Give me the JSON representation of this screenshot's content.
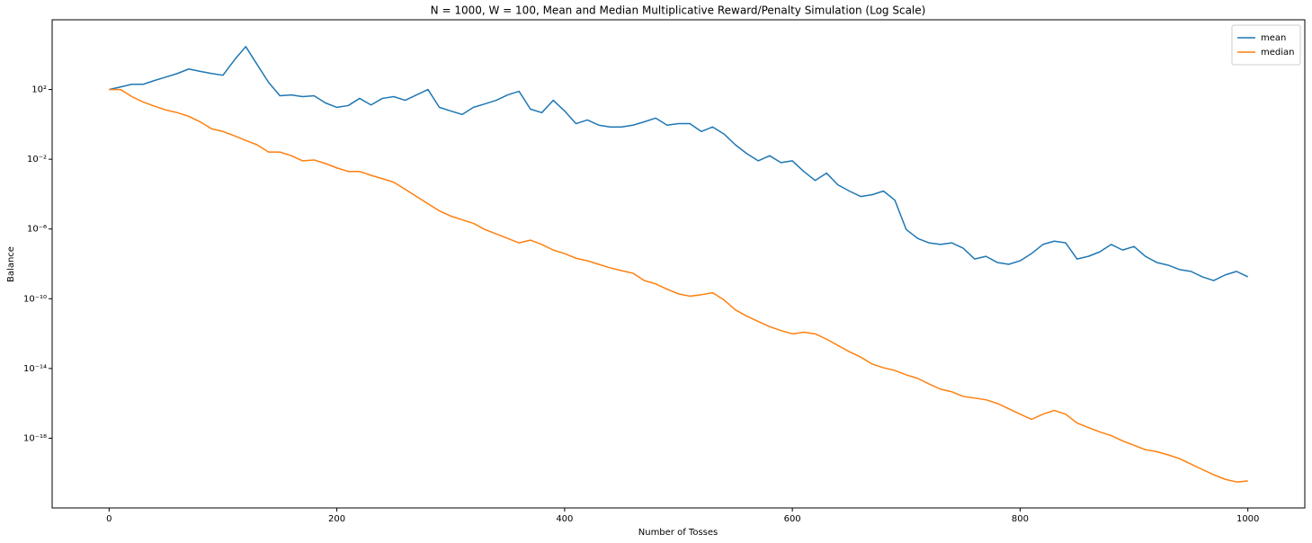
{
  "chart_data": {
    "type": "line",
    "title": "N = 1000, W = 100, Mean and Median Multiplicative Reward/Penalty Simulation (Log Scale)",
    "x_label": "Number of Tosses",
    "y_label": "Balance",
    "yscale": "log",
    "legend": "upper right",
    "grid": false,
    "x": [
      0,
      10,
      20,
      30,
      40,
      50,
      60,
      70,
      80,
      90,
      100,
      110,
      120,
      130,
      140,
      150,
      160,
      170,
      180,
      190,
      200,
      210,
      220,
      230,
      240,
      250,
      260,
      270,
      280,
      290,
      300,
      310,
      320,
      330,
      340,
      350,
      360,
      370,
      380,
      390,
      400,
      410,
      420,
      430,
      440,
      450,
      460,
      470,
      480,
      490,
      500,
      510,
      520,
      530,
      540,
      550,
      560,
      570,
      580,
      590,
      600,
      610,
      620,
      630,
      640,
      650,
      660,
      670,
      680,
      690,
      700,
      710,
      720,
      730,
      740,
      750,
      760,
      770,
      780,
      790,
      800,
      810,
      820,
      830,
      840,
      850,
      860,
      870,
      880,
      890,
      900,
      910,
      920,
      930,
      940,
      950,
      960,
      970,
      980,
      990,
      1000
    ],
    "series": [
      {
        "name": "mean",
        "color": "#1f77b4",
        "values": [
          100,
          140,
          200,
          200,
          330,
          520,
          830,
          1500,
          1100,
          830,
          660,
          4900,
          29000,
          2700,
          260,
          44,
          49,
          39,
          44,
          17,
          9.5,
          12,
          31,
          13,
          31,
          39,
          24,
          49,
          100,
          9.5,
          5.9,
          3.7,
          9.5,
          15,
          24,
          49,
          79,
          7.5,
          4.7,
          24,
          5.9,
          1.1,
          1.8,
          0.9,
          0.71,
          0.71,
          0.9,
          1.4,
          2.3,
          0.9,
          1.1,
          1.1,
          0.39,
          0.71,
          0.28,
          0.067,
          0.021,
          0.0081,
          0.016,
          0.0064,
          0.0081,
          0.002,
          0.00061,
          0.0016,
          0.00034,
          0.00015,
          7.3e-05,
          9.2e-05,
          0.00015,
          4.5e-05,
          9.3e-07,
          2.9e-07,
          1.6e-07,
          1.3e-07,
          1.6e-07,
          7.9e-08,
          1.9e-08,
          2.7e-08,
          1.2e-08,
          9.4e-09,
          1.5e-08,
          3.9e-08,
          1.3e-07,
          2e-07,
          1.6e-07,
          1.9e-08,
          2.7e-08,
          4.9e-08,
          1.3e-07,
          6.2e-08,
          9.9e-08,
          2.7e-08,
          1.2e-08,
          8.4e-09,
          4.7e-09,
          3.7e-09,
          1.8e-09,
          1.1e-09,
          2.3e-09,
          3.7e-09,
          1.8e-09
        ]
      },
      {
        "name": "median",
        "color": "#ff7f0e",
        "values": [
          100,
          100,
          39,
          19,
          11,
          6.7,
          4.7,
          2.9,
          1.4,
          0.56,
          0.39,
          0.22,
          0.12,
          0.067,
          0.026,
          0.026,
          0.016,
          0.0081,
          0.0091,
          0.0057,
          0.0032,
          0.002,
          0.002,
          0.0012,
          0.00077,
          0.00048,
          0.00019,
          7.3e-05,
          2.8e-05,
          1.1e-05,
          5.5e-06,
          3.4e-06,
          2.1e-06,
          9.3e-07,
          5.2e-07,
          2.9e-07,
          1.6e-07,
          2.3e-07,
          1.3e-07,
          6.2e-08,
          3.9e-08,
          2.1e-08,
          1.5e-08,
          9.4e-09,
          5.9e-09,
          4.1e-09,
          2.9e-09,
          1.1e-09,
          7.1e-10,
          3.5e-10,
          1.9e-10,
          1.4e-10,
          1.7e-10,
          2.2e-10,
          8.5e-11,
          2.3e-11,
          1e-11,
          5e-12,
          2.5e-12,
          1.5e-12,
          9.7e-13,
          1.2e-12,
          9.7e-13,
          4.8e-13,
          2.1e-13,
          9.2e-14,
          4.5e-14,
          1.8e-14,
          1.1e-14,
          7.7e-15,
          4.3e-15,
          2.7e-15,
          1.3e-15,
          6.5e-16,
          4.6e-16,
          2.5e-16,
          2e-16,
          1.6e-16,
          9.9e-17,
          4.9e-17,
          2.4e-17,
          1.2e-17,
          2.4e-17,
          3.9e-17,
          2.4e-17,
          7.4e-18,
          4.1e-18,
          2.3e-18,
          1.4e-18,
          7e-19,
          3.9e-19,
          2.2e-19,
          1.7e-19,
          1.1e-19,
          6.7e-20,
          3.3e-20,
          1.6e-20,
          8e-21,
          4.4e-21,
          3.1e-21,
          3.5e-21
        ]
      }
    ],
    "xlim": [
      -50,
      1050
    ],
    "xticks": [
      0,
      200,
      400,
      600,
      800,
      1000
    ],
    "ylim": [
      1e-22,
      1000000
    ],
    "yticks": [
      {
        "value": 100,
        "label": "10²"
      },
      {
        "value": 0.01,
        "label": "10⁻²"
      },
      {
        "value": 1e-06,
        "label": "10⁻⁶"
      },
      {
        "value": 1e-10,
        "label": "10⁻¹⁰"
      },
      {
        "value": 1e-14,
        "label": "10⁻¹⁴"
      },
      {
        "value": 1e-18,
        "label": "10⁻¹⁸"
      }
    ]
  }
}
